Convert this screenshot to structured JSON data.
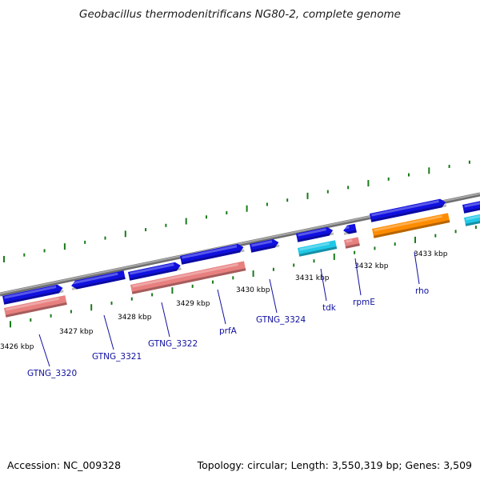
{
  "header": {
    "title": "Geobacillus thermodenitrificans NG80-2, complete genome"
  },
  "footer": {
    "accession": "Accession: NC_009328",
    "summary": "Topology: circular; Length: 3,550,319 bp; Genes: 3,509"
  },
  "colors": {
    "backbone": "#8c8c8c",
    "tick_major": "#1a7a1a",
    "tick_minor": "#1a7a1a",
    "cds": "#1010e0",
    "trna": "#e88080",
    "highlight_cyan": "#20c8e8",
    "highlight_orange": "#ff8c00",
    "label": "#1010a0"
  },
  "scale": {
    "unit": "kbp",
    "ticks": [
      {
        "value": 3426,
        "label": "3426 kbp"
      },
      {
        "value": 3427,
        "label": "3427 kbp"
      },
      {
        "value": 3428,
        "label": "3428 kbp"
      },
      {
        "value": 3429,
        "label": "3429 kbp"
      },
      {
        "value": 3430,
        "label": "3430 kbp"
      },
      {
        "value": 3431,
        "label": "3431 kbp"
      },
      {
        "value": 3432,
        "label": "3432 kbp"
      },
      {
        "value": 3433,
        "label": "3433 kbp"
      }
    ]
  },
  "genes": [
    {
      "name": "GTNG_3320",
      "labeled": true
    },
    {
      "name": "GTNG_3321",
      "labeled": true
    },
    {
      "name": "GTNG_3322",
      "labeled": true
    },
    {
      "name": "prfA",
      "labeled": true
    },
    {
      "name": "GTNG_3324",
      "labeled": true
    },
    {
      "name": "tdk",
      "labeled": true
    },
    {
      "name": "rpmE",
      "labeled": true
    },
    {
      "name": "rho",
      "labeled": true
    }
  ]
}
